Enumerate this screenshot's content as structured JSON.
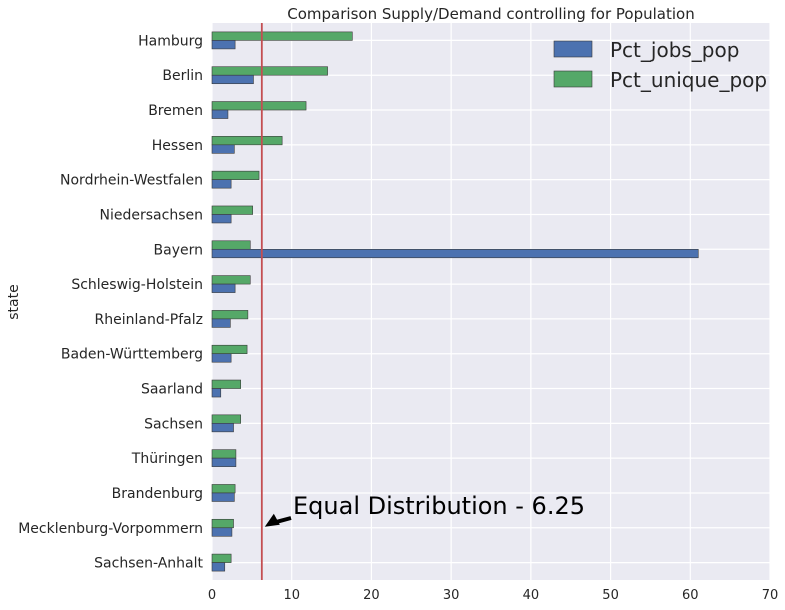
{
  "chart_data": {
    "type": "bar",
    "orientation": "horizontal",
    "title": "Comparison Supply/Demand controlling for Population",
    "ylabel": "state",
    "xlabel": "",
    "xlim": [
      0,
      70
    ],
    "xticks": [
      "0",
      "10",
      "20",
      "30",
      "40",
      "50",
      "60",
      "70"
    ],
    "grid": true,
    "legend_position": "top-right",
    "categories": [
      "Hamburg",
      "Berlin",
      "Bremen",
      "Hessen",
      "Nordrhein-Westfalen",
      "Niedersachsen",
      "Bayern",
      "Schleswig-Holstein",
      "Rheinland-Pfalz",
      "Baden-Württemberg",
      "Saarland",
      "Sachsen",
      "Thüringen",
      "Brandenburg",
      "Mecklenburg-Vorpommern",
      "Sachsen-Anhalt"
    ],
    "series": [
      {
        "name": "Pct_jobs_pop",
        "color": "#4C72B0",
        "values": [
          2.9,
          5.2,
          2.0,
          2.8,
          2.4,
          2.4,
          61.0,
          2.9,
          2.3,
          2.4,
          1.1,
          2.7,
          3.0,
          2.8,
          2.5,
          1.6
        ]
      },
      {
        "name": "Pct_unique_pop",
        "color": "#55A868",
        "values": [
          17.6,
          14.5,
          11.8,
          8.8,
          5.9,
          5.1,
          4.8,
          4.8,
          4.5,
          4.4,
          3.6,
          3.6,
          3.0,
          2.9,
          2.7,
          2.4
        ]
      }
    ],
    "reference_line": {
      "x": 6.25,
      "color": "#C44E52"
    },
    "annotation": {
      "text": "Equal Distribution - 6.25",
      "target_x": 6.25,
      "target_category": "Mecklenburg-Vorpommern"
    }
  }
}
